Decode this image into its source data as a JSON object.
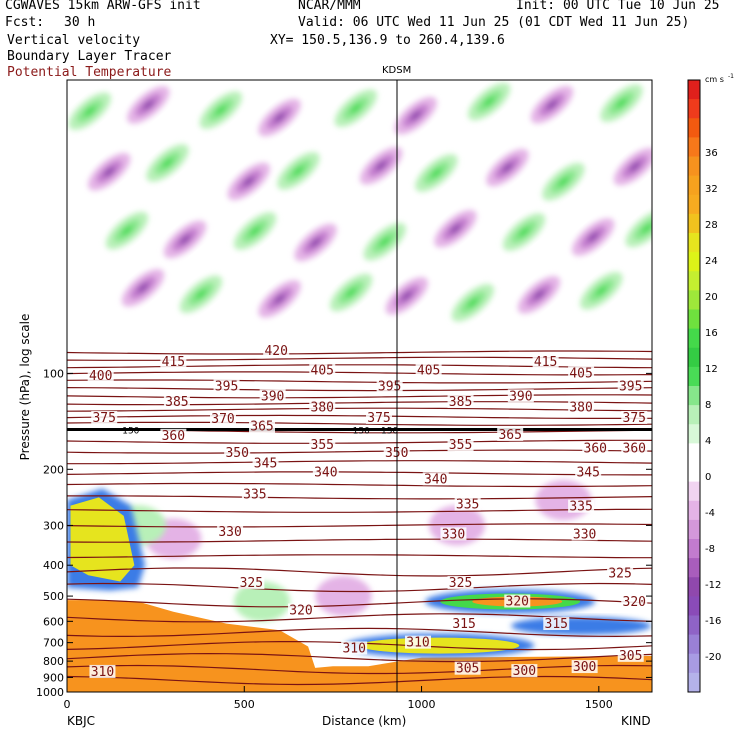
{
  "header": {
    "model": "CGWAVES 15km ARW-GFS init",
    "org": "NCAR/MMM",
    "init": "Init: 00 UTC Tue 10 Jun 25",
    "fcst_label": "Fcst:",
    "fcst_value": "30 h",
    "valid": "Valid: 06 UTC Wed 11 Jun 25 (01 CDT Wed 11 Jun 25)",
    "field1": "Vertical velocity",
    "field2": "Boundary Layer Tracer",
    "field3": "Potential Temperature",
    "xy": "XY= 150.5,136.9 to 260.4,139.6",
    "field3_color": "#8b1a1a"
  },
  "station_marker": "KDSM",
  "left_station": "KBJC",
  "right_station": "KIND",
  "colorbar": {
    "unit": "cm s",
    "unit_exp": "-1",
    "ticks": [
      "36",
      "32",
      "28",
      "24",
      "20",
      "16",
      "12",
      "8",
      "4",
      "0",
      "-4",
      "-8",
      "-12",
      "-16",
      "-20"
    ],
    "colors": [
      "#e0201c",
      "#ef3b1c",
      "#f25a10",
      "#f7781a",
      "#f6921e",
      "#f6a21e",
      "#f7ab20",
      "#f1c21e",
      "#e6e41e",
      "#ddf318",
      "#c4ef30",
      "#9ee83a",
      "#6fe13e",
      "#44d94a",
      "#34cc44",
      "#49db56",
      "#86e68b",
      "#b8f0b8",
      "#d8f8d8",
      "#ffffff",
      "#ffffff",
      "#f1d4f1",
      "#e4b3e6",
      "#d498da",
      "#c27bce",
      "#a95dbc",
      "#9048ad",
      "#8a4bb8",
      "#8f63c6",
      "#9a80d6",
      "#a89be3",
      "#b4b2ea"
    ]
  },
  "chart_data": {
    "type": "heatmap",
    "title": "",
    "xlabel": "Distance (km)",
    "ylabel": "Pressure (hPa), log scale",
    "xlim": [
      0,
      1650
    ],
    "ylim": [
      1000,
      12
    ],
    "y_scale": "log",
    "x_ticks": [
      "0",
      "500",
      "1000",
      "1500"
    ],
    "y_ticks": [
      "100",
      "200",
      "300",
      "400",
      "500",
      "600",
      "700",
      "800",
      "900",
      "1000"
    ],
    "tropopause_labels": [
      "150",
      "150",
      "150"
    ],
    "theta_contour_labels": [
      {
        "v": "420",
        "x": 590,
        "p": 85
      },
      {
        "v": "415",
        "x": 300,
        "p": 92
      },
      {
        "v": "415",
        "x": 1350,
        "p": 92
      },
      {
        "v": "405",
        "x": 720,
        "p": 98
      },
      {
        "v": "405",
        "x": 1020,
        "p": 98
      },
      {
        "v": "405",
        "x": 1450,
        "p": 100
      },
      {
        "v": "400",
        "x": 95,
        "p": 102
      },
      {
        "v": "395",
        "x": 450,
        "p": 110
      },
      {
        "v": "395",
        "x": 910,
        "p": 110
      },
      {
        "v": "395",
        "x": 1590,
        "p": 110
      },
      {
        "v": "390",
        "x": 580,
        "p": 118
      },
      {
        "v": "390",
        "x": 1280,
        "p": 118
      },
      {
        "v": "385",
        "x": 310,
        "p": 123
      },
      {
        "v": "385",
        "x": 1110,
        "p": 123
      },
      {
        "v": "380",
        "x": 720,
        "p": 128
      },
      {
        "v": "380",
        "x": 1450,
        "p": 128
      },
      {
        "v": "375",
        "x": 105,
        "p": 138
      },
      {
        "v": "375",
        "x": 880,
        "p": 138
      },
      {
        "v": "375",
        "x": 1600,
        "p": 138
      },
      {
        "v": "370",
        "x": 440,
        "p": 139
      },
      {
        "v": "365",
        "x": 550,
        "p": 147
      },
      {
        "v": "365",
        "x": 1250,
        "p": 156
      },
      {
        "v": "360",
        "x": 300,
        "p": 157
      },
      {
        "v": "360",
        "x": 1490,
        "p": 172
      },
      {
        "v": "360",
        "x": 1600,
        "p": 172
      },
      {
        "v": "355",
        "x": 720,
        "p": 168
      },
      {
        "v": "355",
        "x": 1110,
        "p": 168
      },
      {
        "v": "350",
        "x": 480,
        "p": 178
      },
      {
        "v": "350",
        "x": 930,
        "p": 178
      },
      {
        "v": "345",
        "x": 560,
        "p": 192
      },
      {
        "v": "345",
        "x": 1470,
        "p": 205
      },
      {
        "v": "340",
        "x": 730,
        "p": 205
      },
      {
        "v": "340",
        "x": 1040,
        "p": 215
      },
      {
        "v": "335",
        "x": 530,
        "p": 240
      },
      {
        "v": "335",
        "x": 1130,
        "p": 258
      },
      {
        "v": "335",
        "x": 1450,
        "p": 262
      },
      {
        "v": "330",
        "x": 460,
        "p": 315
      },
      {
        "v": "330",
        "x": 1090,
        "p": 320
      },
      {
        "v": "330",
        "x": 1460,
        "p": 320
      },
      {
        "v": "325",
        "x": 520,
        "p": 455
      },
      {
        "v": "325",
        "x": 1110,
        "p": 455
      },
      {
        "v": "325",
        "x": 1560,
        "p": 425
      },
      {
        "v": "320",
        "x": 660,
        "p": 555
      },
      {
        "v": "320",
        "x": 1270,
        "p": 520
      },
      {
        "v": "320",
        "x": 1600,
        "p": 522
      },
      {
        "v": "315",
        "x": 1120,
        "p": 612
      },
      {
        "v": "315",
        "x": 1380,
        "p": 612
      },
      {
        "v": "310",
        "x": 810,
        "p": 730
      },
      {
        "v": "310",
        "x": 990,
        "p": 700
      },
      {
        "v": "310",
        "x": 100,
        "p": 865
      },
      {
        "v": "305",
        "x": 1130,
        "p": 845
      },
      {
        "v": "305",
        "x": 1590,
        "p": 770
      },
      {
        "v": "300",
        "x": 1290,
        "p": 860
      },
      {
        "v": "300",
        "x": 1460,
        "p": 835
      }
    ]
  }
}
